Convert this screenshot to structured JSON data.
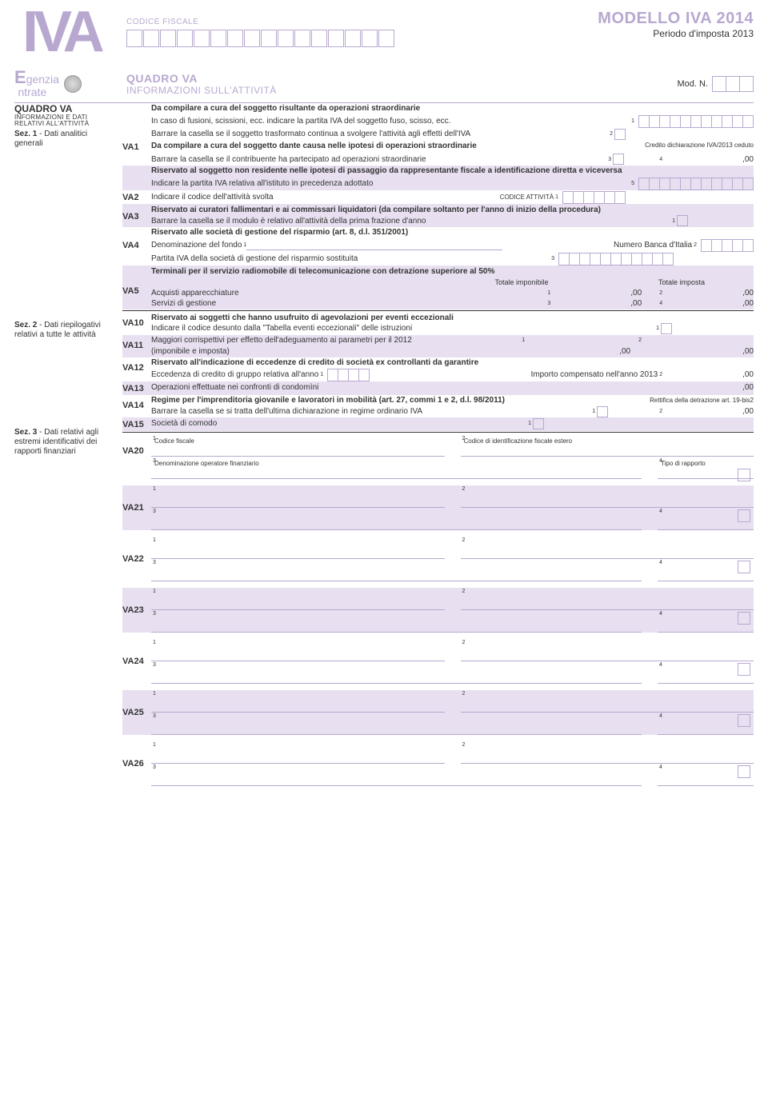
{
  "header": {
    "logo_text": "IVA",
    "codice_fiscale_label": "CODICE FISCALE",
    "modello_title": "MODELLO IVA 2014",
    "periodo": "Periodo d'imposta 2013",
    "agency_line1": "genzia",
    "agency_line2": "ntrate",
    "quadro_title": "QUADRO VA",
    "quadro_sub": "INFORMAZIONI SULL'ATTIVITÀ",
    "mod_n": "Mod. N."
  },
  "sidebar": {
    "title": "QUADRO VA",
    "sub": "INFORMAZIONI E DATI RELATIVI ALL'ATTIVITÀ",
    "sez1_b": "Sez. 1",
    "sez1": " - Dati analitici generali",
    "sez2_b": "Sez. 2",
    "sez2": " - Dati riepilogativi relativi a tutte le attività",
    "sez3_b": "Sez. 3",
    "sez3": " - Dati relativi agli estremi identificativi dei rapporti finanziari"
  },
  "rows": {
    "va1_head": "Da compilare a cura del soggetto risultante da operazioni straordinarie",
    "va1_l1": "In caso di fusioni, scissioni, ecc. indicare la partita IVA del soggetto fuso, scisso, ecc.",
    "va1_l2": "Barrare la casella se il soggetto trasformato continua a svolgere l'attività agli effetti dell'IVA",
    "va1_l3": "Da compilare a cura del soggetto dante causa nelle ipotesi di operazioni straordinarie",
    "va1_credit": "Credito dichiarazione IVA/2013 ceduto",
    "va1_l4": "Barrare la casella se il contribuente ha partecipato ad operazioni straordinarie",
    "va1_l5": "Riservato al soggetto non residente nelle ipotesi di passaggio da rappresentante fiscale a identificazione diretta e viceversa",
    "va1_l6": "Indicare la partita IVA relativa all'istituto in precedenza adottato",
    "va2": "Indicare il codice dell'attività svolta",
    "va2_code": "CODICE ATTIVITÀ",
    "va3_head": "Riservato ai curatori fallimentari e ai commissari liquidatori (da compilare soltanto per l'anno di inizio della procedura)",
    "va3_l1": "Barrare la casella se il modulo è relativo all'attività della prima frazione d'anno",
    "va4_head": "Riservato alle società di gestione del risparmio (art. 8, d.l. 351/2001)",
    "va4_l1": "Denominazione del fondo",
    "va4_banca": "Numero Banca d'Italia",
    "va4_l2": "Partita IVA della società di gestione del risparmio sostituita",
    "va5_head": "Terminali per il servizio radiomobile di telecomunicazione con detrazione superiore al 50%",
    "va5_col1": "Totale imponibile",
    "va5_col2": "Totale imposta",
    "va5_r1": "Acquisti apparecchiature",
    "va5_r2": "Servizi di gestione",
    "va10_head": "Riservato ai soggetti che hanno usufruito di agevolazioni per eventi eccezionali",
    "va10_l1": "Indicare il codice desunto dalla \"Tabella eventi eccezionali\" delle istruzioni",
    "va11_l1": "Maggiori corrispettivi per effetto dell'adeguamento ai parametri per il 2012",
    "va11_l2": "(imponibile e imposta)",
    "va12_head": "Riservato all'indicazione di eccedenze di credito di società ex controllanti da garantire",
    "va12_l1": "Eccedenza di credito di gruppo relativa all'anno",
    "va12_l2": "Importo compensato nell'anno 2013",
    "va13": "Operazioni effettuate nei confronti di condomìni",
    "va14_head": "Regime per l'imprenditoria giovanile e lavoratori in mobilità (art. 27, commi 1 e 2, d.l. 98/2011)",
    "va14_rett": "Rettifica della detrazione art. 19-bis2",
    "va14_l1": "Barrare la casella se si tratta dell'ultima dichiarazione in regime ordinario IVA",
    "va15": "Società di comodo",
    "va20_cf": "Codice fiscale",
    "va20_cie": "Codice di identificazione fiscale estero",
    "va20_den": "Denominazione operatore finanziario",
    "va20_tipo": "Tipo di rapporto",
    "zero": ",00"
  },
  "va_labels": {
    "va1": "VA1",
    "va2": "VA2",
    "va3": "VA3",
    "va4": "VA4",
    "va5": "VA5",
    "va10": "VA10",
    "va11": "VA11",
    "va12": "VA12",
    "va13": "VA13",
    "va14": "VA14",
    "va15": "VA15",
    "va20": "VA20",
    "va21": "VA21",
    "va22": "VA22",
    "va23": "VA23",
    "va24": "VA24",
    "va25": "VA25",
    "va26": "VA26"
  },
  "colors": {
    "accent": "#b8a8d0",
    "accent_bg": "#e8e0f0",
    "text": "#333333"
  }
}
